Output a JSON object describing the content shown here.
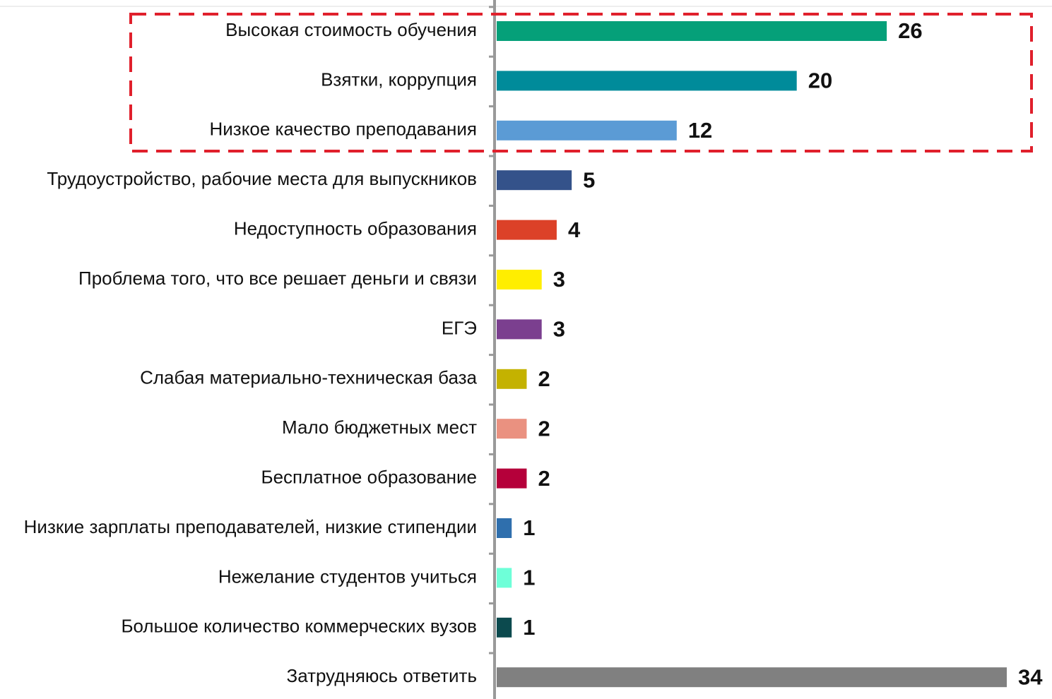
{
  "chart_data": {
    "type": "bar",
    "orientation": "horizontal",
    "categories": [
      "Высокая стоимость обучения",
      "Взятки, коррупция",
      "Низкое качество преподавания",
      "Трудоустройство, рабочие места для выпускников",
      "Недоступность образования",
      "Проблема того, что все решает деньги и связи",
      "ЕГЭ",
      "Слабая материально-техническая база",
      "Мало бюджетных мест",
      "Бесплатное образование",
      "Низкие зарплаты преподавателей, низкие стипендии",
      "Нежелание студентов учиться",
      "Большое количество коммерческих вузов",
      "Затрудняюсь ответить"
    ],
    "values": [
      26,
      20,
      12,
      5,
      4,
      3,
      3,
      2,
      2,
      2,
      1,
      1,
      1,
      34
    ],
    "colors": [
      "#05a079",
      "#008b9a",
      "#5b9bd5",
      "#34528a",
      "#dc4128",
      "#ffee00",
      "#7b3f8f",
      "#c4b200",
      "#ea9180",
      "#b5003a",
      "#2f6fad",
      "#6effd8",
      "#0c4a4e",
      "#808080"
    ]
  }
}
